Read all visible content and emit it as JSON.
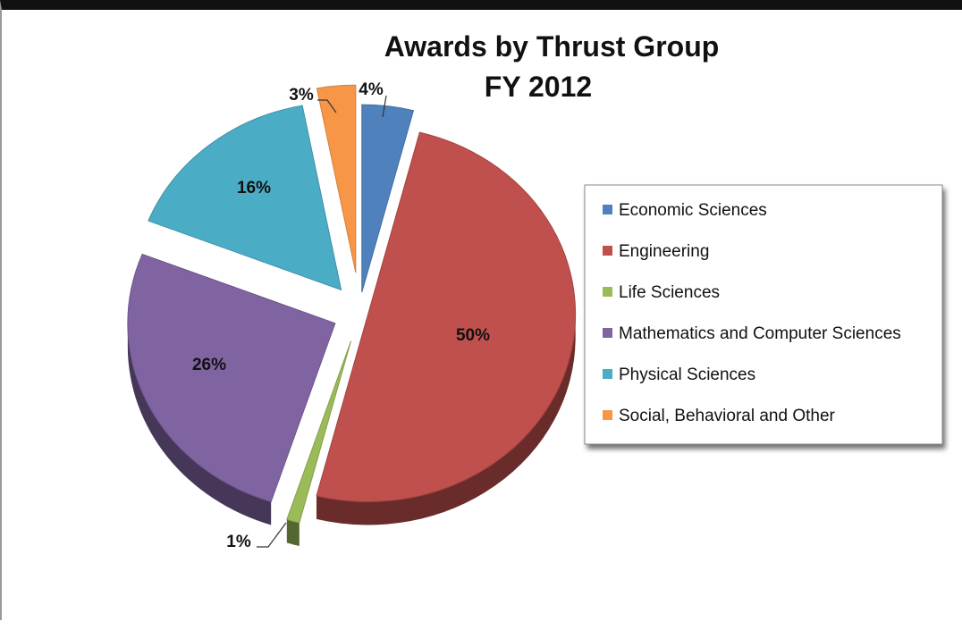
{
  "chart_data": {
    "type": "pie",
    "title": "Awards by Thrust Group",
    "subtitle": "FY 2012",
    "legend_position": "right",
    "slices": [
      {
        "label": "Economic Sciences",
        "value": 4,
        "display": "4%",
        "color": "#4F81BD"
      },
      {
        "label": "Engineering",
        "value": 50,
        "display": "50%",
        "color": "#C0504D"
      },
      {
        "label": "Life Sciences",
        "value": 1,
        "display": "1%",
        "color": "#9BBB59"
      },
      {
        "label": "Mathematics and Computer Sciences",
        "value": 26,
        "display": "26%",
        "color": "#8064A2"
      },
      {
        "label": "Physical Sciences",
        "value": 16,
        "display": "16%",
        "color": "#4BACC6"
      },
      {
        "label": "Social, Behavioral and Other",
        "value": 3,
        "display": "3%",
        "color": "#F79646"
      }
    ]
  }
}
